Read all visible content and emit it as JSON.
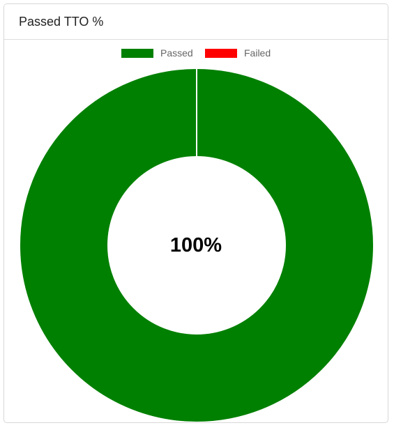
{
  "card": {
    "title": "Passed TTO %"
  },
  "chart_data": {
    "type": "pie",
    "variant": "doughnut",
    "title": "Passed TTO %",
    "legend": "top",
    "center_label": "100%",
    "categories": [
      "Passed",
      "Failed"
    ],
    "values": [
      100,
      0
    ],
    "colors": [
      "#008000",
      "#ff0000"
    ],
    "slice_border_color": "#ffffff"
  }
}
